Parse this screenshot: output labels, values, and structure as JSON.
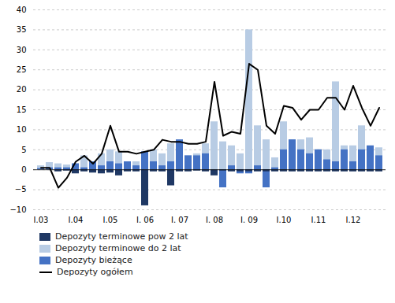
{
  "chart_data": {
    "type": "bar",
    "categories": [
      "I.03",
      null,
      null,
      null,
      "I.04",
      null,
      null,
      null,
      "I.05",
      null,
      null,
      null,
      "I. 06",
      null,
      null,
      null,
      "I. 07",
      null,
      null,
      null,
      "I. 08",
      null,
      null,
      null,
      "I. 09",
      null,
      null,
      null,
      "I.10",
      null,
      null,
      null,
      "I.11",
      null,
      null,
      null,
      "I.12",
      null,
      null,
      null
    ],
    "series": [
      {
        "name": "Depozyty terminowe pow 2 lat",
        "type": "bar",
        "color": "#1f3864",
        "values": [
          0.0,
          0.0,
          -0.5,
          -0.3,
          -1.0,
          -0.5,
          -0.8,
          -1.0,
          -0.8,
          -1.5,
          -0.5,
          -0.5,
          -9.0,
          -0.5,
          -0.5,
          -4.0,
          -0.5,
          -0.5,
          -0.3,
          -0.5,
          -1.5,
          -0.3,
          -0.5,
          -0.5,
          -0.5,
          -0.5,
          -0.5,
          -0.5,
          -0.5,
          -0.5,
          -0.5,
          -0.5,
          -0.5,
          -0.5,
          -0.5,
          -0.5,
          -0.5,
          -0.5,
          -0.5,
          -0.5
        ]
      },
      {
        "name": "Depozyty terminowe do 2 lat",
        "type": "bar",
        "color": "#b8cce4",
        "values": [
          1.0,
          1.8,
          1.5,
          1.2,
          1.5,
          3.5,
          2.0,
          4.0,
          5.0,
          4.5,
          1.5,
          2.0,
          2.5,
          5.0,
          4.0,
          6.5,
          4.0,
          3.5,
          4.0,
          6.5,
          12.0,
          7.0,
          6.0,
          4.0,
          35.0,
          11.0,
          7.5,
          3.0,
          12.0,
          7.5,
          7.5,
          8.0,
          5.0,
          5.0,
          22.0,
          6.0,
          6.0,
          11.0,
          5.5,
          5.5
        ]
      },
      {
        "name": "Depozyty bieżące",
        "type": "bar",
        "color": "#4472c4",
        "values": [
          0.3,
          0.5,
          0.5,
          0.5,
          1.5,
          0.5,
          2.0,
          1.0,
          2.0,
          1.5,
          2.0,
          1.0,
          4.5,
          2.0,
          1.0,
          2.0,
          7.5,
          3.5,
          3.5,
          4.0,
          0.0,
          -4.5,
          1.0,
          -1.0,
          -1.0,
          1.0,
          -4.5,
          0.5,
          5.0,
          7.5,
          5.0,
          4.0,
          5.0,
          2.5,
          2.0,
          5.0,
          2.0,
          5.0,
          6.0,
          3.5
        ]
      },
      {
        "name": "Depozyty ogółem",
        "type": "line",
        "color": "#000000",
        "values": [
          0.5,
          0.5,
          -4.5,
          -2.0,
          2.0,
          3.5,
          1.5,
          4.0,
          11.0,
          4.5,
          4.5,
          4.0,
          4.5,
          5.0,
          7.5,
          7.0,
          7.0,
          6.5,
          6.5,
          7.0,
          22.0,
          8.5,
          9.5,
          9.0,
          26.5,
          25.0,
          11.0,
          9.0,
          16.0,
          15.5,
          12.5,
          15.0,
          15.0,
          18.0,
          18.0,
          15.0,
          21.0,
          15.5,
          11.0,
          15.5
        ]
      }
    ],
    "ylim": [
      -10,
      40
    ],
    "yticks": [
      -10,
      -5,
      0,
      5,
      10,
      15,
      20,
      25,
      30,
      35,
      40
    ],
    "grid": true,
    "legend": "bottom left",
    "stacked": false
  }
}
